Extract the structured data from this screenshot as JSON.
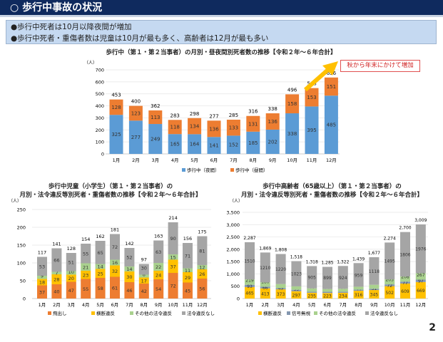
{
  "header": {
    "title": "○ 歩行中事故の状況"
  },
  "summary": [
    "●歩行中死者は10月以降夜間が増加",
    "●歩行中死者・重傷者数は児童は10月が最も多く、高齢者は12月が最も多い"
  ],
  "callout": "秋から年末にかけて増加",
  "page_number": "2",
  "chart_data": [
    {
      "type": "bar",
      "stacked": true,
      "title": "歩行中（第１・第２当事者）の月別・昼夜間別死者数の推移【令和２年～６年合計】",
      "ylabel": "（人）",
      "ylim": [
        0,
        700
      ],
      "yticks": [
        0,
        100,
        200,
        300,
        400,
        500,
        600,
        700
      ],
      "categories": [
        "1月",
        "2月",
        "3月",
        "4月",
        "5月",
        "6月",
        "7月",
        "8月",
        "9月",
        "10月",
        "11月",
        "12月"
      ],
      "series": [
        {
          "name": "歩行中（夜間）",
          "color": "#5b9bd5",
          "values": [
            325,
            277,
            249,
            165,
            164,
            141,
            152,
            185,
            202,
            338,
            395,
            485
          ]
        },
        {
          "name": "歩行中（昼間）",
          "color": "#ed7d31",
          "values": [
            128,
            123,
            113,
            118,
            134,
            136,
            133,
            131,
            136,
            158,
            153,
            151
          ]
        }
      ],
      "totals": [
        453,
        400,
        362,
        283,
        298,
        277,
        285,
        316,
        338,
        496,
        548,
        636
      ],
      "legend": "bottom",
      "grid": true
    },
    {
      "type": "bar",
      "stacked": true,
      "title": "歩行中児童（小学生）（第１・第２当事者）の\n月別・法令違反等別死者・重傷者数の推移【令和２年～６年合計】",
      "ylabel": "（人）",
      "ylim": [
        0,
        250
      ],
      "yticks": [
        0,
        50,
        100,
        150,
        200,
        250
      ],
      "categories": [
        "1月",
        "2月",
        "3月",
        "4月",
        "5月",
        "6月",
        "7月",
        "8月",
        "9月",
        "10月",
        "11月",
        "12月"
      ],
      "series": [
        {
          "name": "飛出し",
          "color": "#ed7d31",
          "values": [
            37,
            40,
            47,
            55,
            58,
            61,
            46,
            42,
            54,
            72,
            45,
            56
          ]
        },
        {
          "name": "横断違反",
          "color": "#ffc000",
          "values": [
            18,
            28,
            20,
            23,
            25,
            32,
            30,
            17,
            24,
            37,
            29,
            26
          ]
        },
        {
          "name": "その他の法令違反",
          "color": "#a9d18e",
          "values": [
            9,
            7,
            10,
            21,
            14,
            16,
            14,
            8,
            22,
            15,
            11,
            12
          ]
        },
        {
          "name": "法令違反なし",
          "color": "#a5a5a5",
          "values": [
            53,
            66,
            51,
            55,
            65,
            72,
            52,
            30,
            63,
            90,
            71,
            81
          ]
        }
      ],
      "totals": [
        117,
        141,
        128,
        154,
        162,
        181,
        142,
        97,
        163,
        214,
        156,
        175
      ],
      "legend": "bottom",
      "grid": true
    },
    {
      "type": "bar",
      "stacked": true,
      "title": "歩行中高齢者（65歳以上）（第１・第２当事者）の\n月別・法令違反等別死者・重傷者数の推移【令和２年～６年合計】",
      "ylabel": "（人）",
      "ylim": [
        0,
        3500
      ],
      "yticks": [
        "0",
        "500",
        "1,000",
        "1,500",
        "2,000",
        "2,500",
        "3,000",
        "3,500"
      ],
      "categories": [
        "1月",
        "2月",
        "3月",
        "4月",
        "5月",
        "6月",
        "7月",
        "8月",
        "9月",
        "10月",
        "11月",
        "12月"
      ],
      "series": [
        {
          "name": "横断違反",
          "color": "#ffc000",
          "values": [
            465,
            413,
            373,
            297,
            235,
            223,
            234,
            316,
            345,
            502,
            609,
            669
          ]
        },
        {
          "name": "信号無視",
          "color": "#8497b0",
          "values": [
            93,
            66,
            49,
            59,
            40,
            51,
            43,
            44,
            51,
            72,
            77,
            97
          ]
        },
        {
          "name": "その他の法令違反",
          "color": "#a9d18e",
          "values": [
            219,
            180,
            166,
            139,
            138,
            112,
            121,
            120,
            163,
            205,
            208,
            267
          ]
        },
        {
          "name": "法令違反なし",
          "color": "#a5a5a5",
          "values": [
            1510,
            1210,
            1220,
            1023,
            905,
            899,
            924,
            959,
            1118,
            1495,
            1806,
            1976
          ]
        }
      ],
      "totals": [
        "2,287",
        "1,869",
        "1,808",
        "1,518",
        "1,318",
        "1,285",
        "1,322",
        "1,439",
        "1,677",
        "2,274",
        "2,700",
        "3,009"
      ],
      "legend": "bottom",
      "grid": true
    }
  ]
}
